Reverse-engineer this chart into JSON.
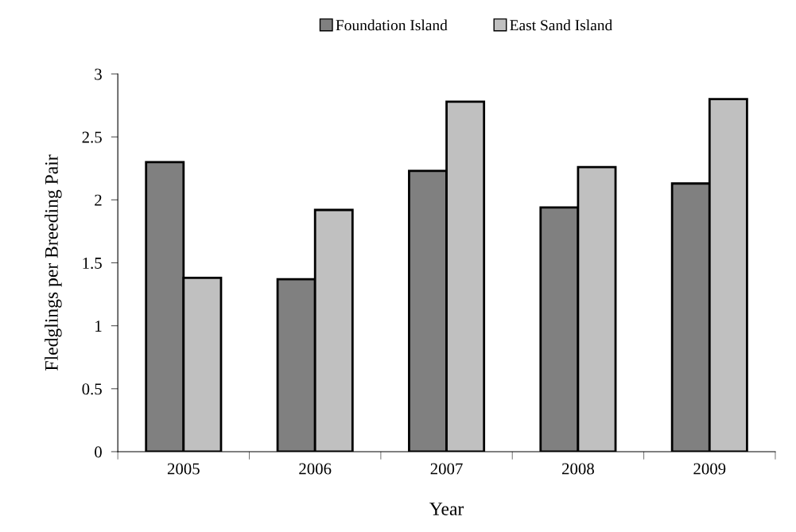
{
  "chart_data": {
    "type": "bar",
    "xlabel": "Year",
    "ylabel": "Fledglings per Breeding Pair",
    "categories": [
      "2005",
      "2006",
      "2007",
      "2008",
      "2009"
    ],
    "series": [
      {
        "name": "Foundation Island",
        "color": "#808080",
        "values": [
          2.3,
          1.37,
          2.23,
          1.94,
          2.13
        ]
      },
      {
        "name": "East Sand Island",
        "color": "#c0c0c0",
        "values": [
          1.38,
          1.92,
          2.78,
          2.26,
          2.8
        ]
      }
    ],
    "ylim": [
      0,
      3
    ],
    "yticks": [
      0,
      0.5,
      1,
      1.5,
      2,
      2.5,
      3
    ],
    "grid": false,
    "legend": "top"
  }
}
